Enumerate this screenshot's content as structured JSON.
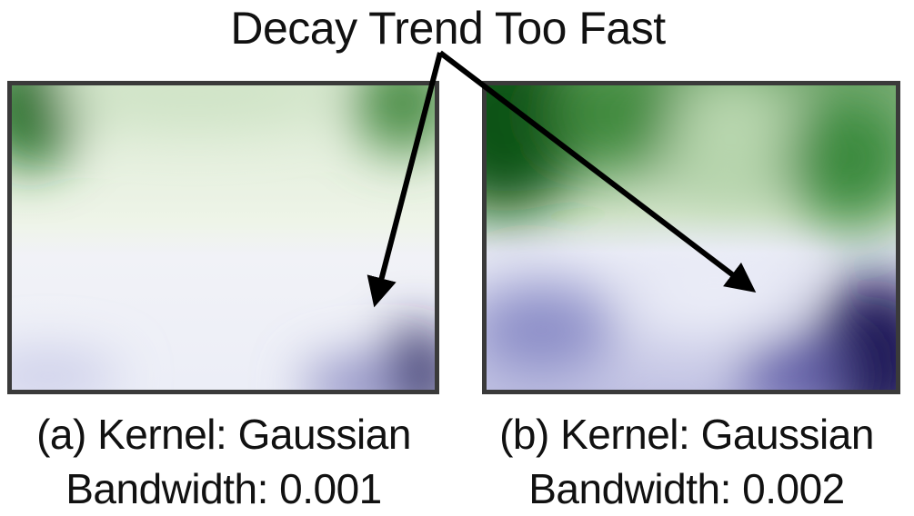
{
  "title": "Decay Trend Too Fast",
  "panels": [
    {
      "caption_line1": "(a) Kernel: Gaussian",
      "caption_line2": "Bandwidth: 0.001"
    },
    {
      "caption_line1": "(b) Kernel: Gaussian",
      "caption_line2": "Bandwidth: 0.002"
    }
  ],
  "colors": {
    "high": "#1a6b1f",
    "mid": "#f4f7f0",
    "low": "#1d1650",
    "frame": "#3a3a3a",
    "arrow": "#000000"
  }
}
